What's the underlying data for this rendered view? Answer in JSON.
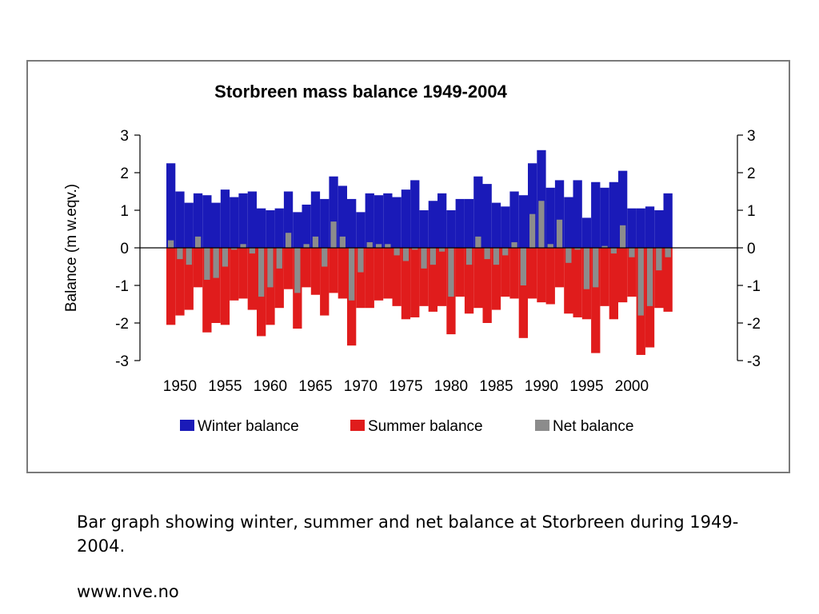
{
  "caption": "Bar graph showing winter, summer and net balance at Storbreen during 1949-2004.",
  "source": "www.nve.no",
  "colors": {
    "winter": "#1a1ab8",
    "summer": "#e01c1c",
    "net": "#8c8c8c"
  },
  "chart_data": {
    "type": "bar",
    "title": "Storbreen mass balance 1949-2004",
    "xlabel": "",
    "ylabel": "Balance (m w.eqv.)",
    "ylim": [
      -3,
      3
    ],
    "yticks": [
      3,
      2,
      1,
      0,
      -1,
      -2,
      -3
    ],
    "xticks": [
      1950,
      1955,
      1960,
      1965,
      1970,
      1975,
      1980,
      1985,
      1990,
      1995,
      2000
    ],
    "legend": [
      "Winter balance",
      "Summer balance",
      "Net balance"
    ],
    "legend_position": "bottom",
    "grid": false,
    "x": [
      1949,
      1950,
      1951,
      1952,
      1953,
      1954,
      1955,
      1956,
      1957,
      1958,
      1959,
      1960,
      1961,
      1962,
      1963,
      1964,
      1965,
      1966,
      1967,
      1968,
      1969,
      1970,
      1971,
      1972,
      1973,
      1974,
      1975,
      1976,
      1977,
      1978,
      1979,
      1980,
      1981,
      1982,
      1983,
      1984,
      1985,
      1986,
      1987,
      1988,
      1989,
      1990,
      1991,
      1992,
      1993,
      1994,
      1995,
      1996,
      1997,
      1998,
      1999,
      2000,
      2001,
      2002,
      2003,
      2004
    ],
    "series": [
      {
        "name": "Winter balance",
        "values": [
          2.25,
          1.5,
          1.2,
          1.45,
          1.4,
          1.2,
          1.55,
          1.35,
          1.45,
          1.5,
          1.05,
          1.0,
          1.05,
          1.5,
          0.95,
          1.15,
          1.5,
          1.3,
          1.9,
          1.65,
          1.3,
          0.95,
          1.45,
          1.4,
          1.45,
          1.35,
          1.55,
          1.8,
          1.0,
          1.25,
          1.45,
          1.0,
          1.3,
          1.3,
          1.9,
          1.7,
          1.2,
          1.1,
          1.5,
          1.4,
          2.25,
          2.6,
          1.6,
          1.8,
          1.35,
          1.8,
          0.8,
          1.75,
          1.6,
          1.75,
          2.05,
          1.05,
          1.05,
          1.1,
          1.0,
          1.45
        ]
      },
      {
        "name": "Summer balance",
        "values": [
          -2.05,
          -1.8,
          -1.65,
          -1.05,
          -2.25,
          -2.0,
          -2.05,
          -1.4,
          -1.35,
          -1.65,
          -2.35,
          -2.05,
          -1.6,
          -1.1,
          -2.15,
          -1.05,
          -1.25,
          -1.8,
          -1.2,
          -1.35,
          -2.6,
          -1.6,
          -1.6,
          -1.4,
          -1.35,
          -1.55,
          -1.9,
          -1.85,
          -1.55,
          -1.7,
          -1.55,
          -2.3,
          -1.3,
          -1.75,
          -1.6,
          -2.0,
          -1.65,
          -1.3,
          -1.35,
          -2.4,
          -1.35,
          -1.45,
          -1.5,
          -1.05,
          -1.75,
          -1.85,
          -1.9,
          -2.8,
          -1.55,
          -1.9,
          -1.45,
          -1.3,
          -2.85,
          -2.65,
          -1.6,
          -1.7
        ]
      },
      {
        "name": "Net balance",
        "values": [
          0.2,
          -0.3,
          -0.45,
          0.3,
          -0.85,
          -0.8,
          -0.5,
          -0.05,
          0.1,
          -0.15,
          -1.3,
          -1.05,
          -0.55,
          0.4,
          -1.2,
          0.1,
          0.3,
          -0.5,
          0.7,
          0.3,
          -1.4,
          -0.65,
          0.15,
          0.1,
          0.1,
          -0.2,
          -0.35,
          -0.05,
          -0.55,
          -0.45,
          -0.1,
          -1.3,
          0.0,
          -0.45,
          0.3,
          -0.3,
          -0.45,
          -0.2,
          0.15,
          -1.0,
          0.9,
          1.25,
          0.1,
          0.75,
          -0.4,
          -0.05,
          -1.1,
          -1.05,
          0.05,
          -0.15,
          0.6,
          -0.25,
          -1.8,
          -1.55,
          -0.6,
          -0.25
        ]
      }
    ]
  }
}
